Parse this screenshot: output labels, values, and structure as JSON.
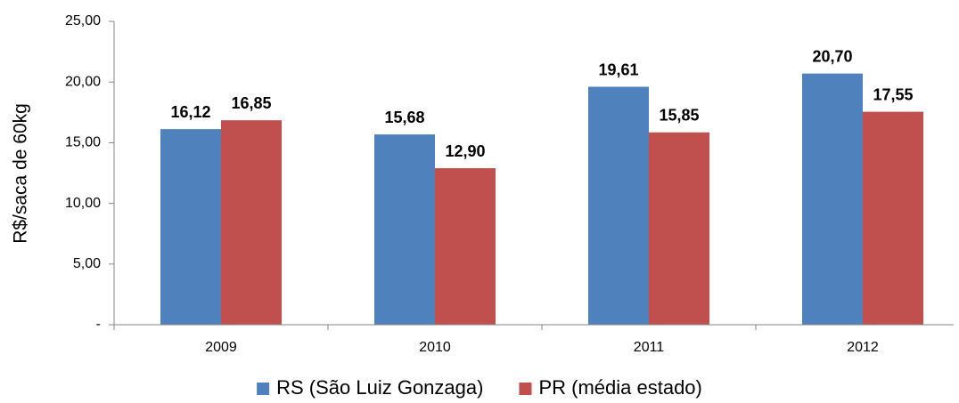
{
  "chart_data": {
    "type": "bar",
    "y_label": "R$/saca de 60kg",
    "categories": [
      "2009",
      "2010",
      "2011",
      "2012"
    ],
    "series": [
      {
        "name": "RS (São Luiz Gonzaga)",
        "color": "#4f81bd",
        "values": [
          16.12,
          15.68,
          19.61,
          20.7
        ],
        "value_labels": [
          "16,12",
          "15,68",
          "19,61",
          "20,70"
        ]
      },
      {
        "name": "PR (média estado)",
        "color": "#c0504d",
        "values": [
          16.85,
          12.9,
          15.85,
          17.55
        ],
        "value_labels": [
          "16,85",
          "12,90",
          "15,85",
          "17,55"
        ]
      }
    ],
    "ylim": [
      0,
      25
    ],
    "yticks": [
      {
        "value": 0,
        "label": "-"
      },
      {
        "value": 5,
        "label": "5,00"
      },
      {
        "value": 10,
        "label": "10,00"
      },
      {
        "value": 15,
        "label": "15,00"
      },
      {
        "value": 20,
        "label": "20,00"
      },
      {
        "value": 25,
        "label": "25,00"
      }
    ],
    "grid": false,
    "legend": "bottom"
  }
}
